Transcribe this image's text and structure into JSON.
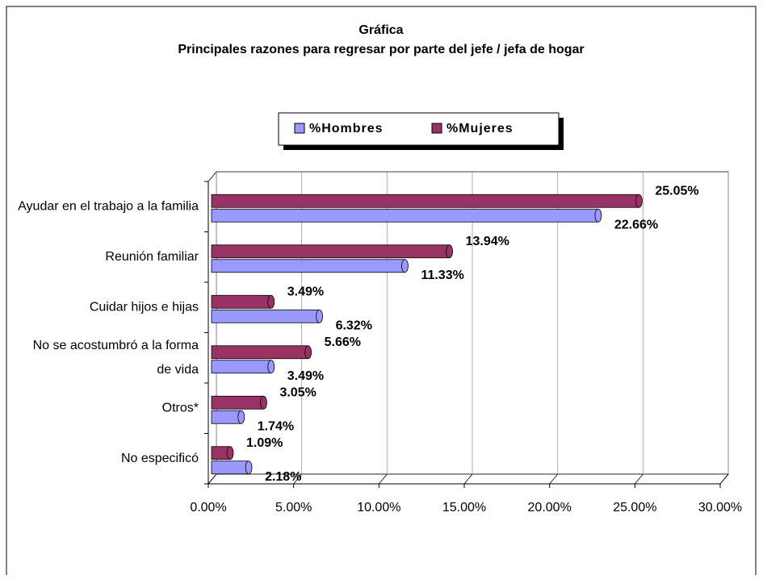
{
  "chart_data": {
    "type": "bar",
    "orientation": "horizontal",
    "title": "Gráfica",
    "subtitle": "Principales razones para regresar por parte del jefe / jefa de hogar",
    "categories": [
      "Ayudar en el trabajo a la familia",
      "Reunión familiar",
      "Cuidar hijos e hijas",
      "No se acostumbró a la forma de vida",
      "Otros*",
      "No especificó"
    ],
    "series": [
      {
        "name": "%Hombres",
        "color": "#9999ff",
        "values": [
          22.66,
          11.33,
          6.32,
          3.49,
          1.74,
          2.18
        ],
        "value_labels": [
          "22.66%",
          "11.33%",
          "6.32%",
          "3.49%",
          "1.74%",
          "2.18%"
        ]
      },
      {
        "name": "%Mujeres",
        "color": "#993366",
        "values": [
          25.05,
          13.94,
          3.49,
          5.66,
          3.05,
          1.09
        ],
        "value_labels": [
          "25.05%",
          "13.94%",
          "3.49%",
          "5.66%",
          "3.05%",
          "1.09%"
        ]
      }
    ],
    "xlim": [
      0,
      30
    ],
    "xticks": [
      {
        "value": 0,
        "label": "0.00%"
      },
      {
        "value": 5,
        "label": "5.00%"
      },
      {
        "value": 10,
        "label": "10.00%"
      },
      {
        "value": 15,
        "label": "15.00%"
      },
      {
        "value": 20,
        "label": "20.00%"
      },
      {
        "value": 25,
        "label": "25.00%"
      },
      {
        "value": 30,
        "label": "30.00%"
      }
    ],
    "grid": true,
    "legend": "top"
  }
}
